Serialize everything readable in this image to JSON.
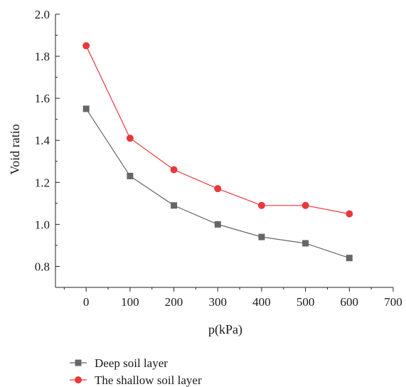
{
  "chart_data": {
    "type": "line",
    "xlabel": "p(kPa)",
    "ylabel": "Void ratio",
    "xlim": [
      -70,
      700
    ],
    "ylim": [
      0.7,
      2.0
    ],
    "xticks": [
      0,
      100,
      200,
      300,
      400,
      500,
      600,
      700
    ],
    "yticks": [
      0.8,
      1.0,
      1.2,
      1.4,
      1.6,
      1.8,
      2.0
    ],
    "xtick_labels": [
      "0",
      "100",
      "200",
      "300",
      "400",
      "500",
      "600",
      "700"
    ],
    "ytick_labels": [
      "0.8",
      "1.0",
      "1.2",
      "1.4",
      "1.6",
      "1.8",
      "2.0"
    ],
    "grid": false,
    "legend_position": "bottom-left",
    "series": [
      {
        "name": "Deep soil layer",
        "marker": "square",
        "color": "#666666",
        "x": [
          0,
          100,
          200,
          300,
          400,
          500,
          600
        ],
        "y": [
          1.55,
          1.23,
          1.09,
          1.0,
          0.94,
          0.91,
          0.84
        ]
      },
      {
        "name": "The shallow soil layer",
        "marker": "circle",
        "color": "#e8383d",
        "x": [
          0,
          100,
          200,
          300,
          400,
          500,
          600
        ],
        "y": [
          1.85,
          1.41,
          1.26,
          1.17,
          1.09,
          1.09,
          1.05
        ]
      }
    ]
  }
}
